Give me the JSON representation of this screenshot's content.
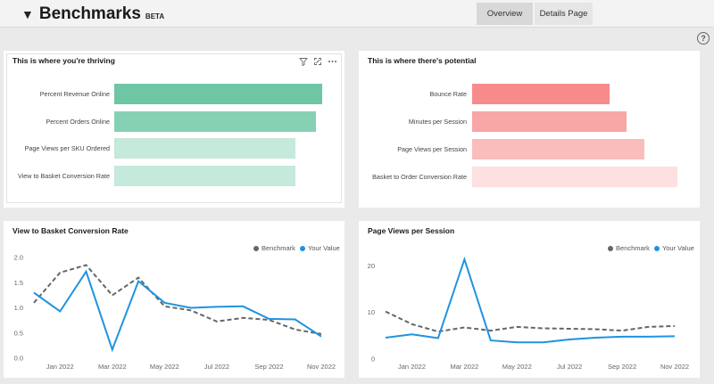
{
  "header": {
    "caret": "▼",
    "title": "Benchmarks",
    "badge": "BETA",
    "tabs": [
      {
        "label": "Overview",
        "active": true
      },
      {
        "label": "Details Page",
        "active": false
      }
    ],
    "help_glyph": "?"
  },
  "thriving": {
    "title": "This is where you're thriving",
    "icons": [
      "filter-icon",
      "focus-mode-icon",
      "more-options-icon"
    ],
    "chart_data": {
      "type": "bar",
      "orientation": "horizontal",
      "categories": [
        "Percent Revenue Online",
        "Percent Orders Online",
        "Page Views per SKU Ordered",
        "View to Basket Conversion Rate"
      ],
      "values": [
        1.0,
        0.97,
        0.87,
        0.87
      ],
      "colors": [
        "#6fc6a4",
        "#86d1b3",
        "#c5e9da",
        "#c5e9da"
      ]
    }
  },
  "potential": {
    "title": "This is where there's potential",
    "chart_data": {
      "type": "bar",
      "orientation": "horizontal",
      "categories": [
        "Bounce Rate",
        "Minutes per Session",
        "Page Views per Session",
        "Basket to Order Conversion Rate"
      ],
      "values": [
        0.67,
        0.75,
        0.84,
        1.0
      ],
      "colors": [
        "#f78b8b",
        "#f9a6a6",
        "#fbbcbc",
        "#fde0e0"
      ]
    }
  },
  "view_basket": {
    "title": "View to Basket Conversion Rate",
    "legend": [
      {
        "name": "Benchmark",
        "color": "#666666"
      },
      {
        "name": "Your Value",
        "color": "#1f93e0"
      }
    ],
    "chart_data": {
      "type": "line",
      "x": [
        "2021-12",
        "2022-01",
        "2022-02",
        "2022-03",
        "2022-04",
        "2022-05",
        "2022-06",
        "2022-07",
        "2022-08",
        "2022-09",
        "2022-10",
        "2022-11"
      ],
      "x_ticks": [
        "Jan 2022",
        "Mar 2022",
        "May 2022",
        "Jul 2022",
        "Sep 2022",
        "Nov 2022"
      ],
      "y_ticks": [
        "0.0",
        "0.5",
        "1.0",
        "1.5",
        "2.0"
      ],
      "ylim": [
        0,
        2.0
      ],
      "series": [
        {
          "name": "Benchmark",
          "values": [
            1.1,
            1.7,
            1.85,
            1.25,
            1.6,
            1.03,
            0.95,
            0.73,
            0.8,
            0.76,
            0.57,
            0.48
          ],
          "color": "#666666",
          "dashed": true
        },
        {
          "name": "Your Value",
          "values": [
            1.3,
            0.93,
            1.72,
            0.17,
            1.53,
            1.1,
            1.0,
            1.02,
            1.03,
            0.78,
            0.77,
            0.43
          ],
          "color": "#1f93e0",
          "dashed": false
        }
      ]
    }
  },
  "page_views": {
    "title": "Page Views per Session",
    "legend": [
      {
        "name": "Benchmark",
        "color": "#666666"
      },
      {
        "name": "Your Value",
        "color": "#1f93e0"
      }
    ],
    "chart_data": {
      "type": "line",
      "x": [
        "2021-12",
        "2022-01",
        "2022-02",
        "2022-03",
        "2022-04",
        "2022-05",
        "2022-06",
        "2022-07",
        "2022-08",
        "2022-09",
        "2022-10",
        "2022-11"
      ],
      "x_ticks": [
        "Jan 2022",
        "Mar 2022",
        "May 2022",
        "Jul 2022",
        "Sep 2022",
        "Nov 2022"
      ],
      "y_ticks": [
        "0",
        "10",
        "20"
      ],
      "ylim": [
        0,
        22
      ],
      "series": [
        {
          "name": "Benchmark",
          "values": [
            10.2,
            7.5,
            5.9,
            6.8,
            6.1,
            6.9,
            6.6,
            6.5,
            6.4,
            6.1,
            6.9,
            7.1
          ],
          "color": "#666666",
          "dashed": true
        },
        {
          "name": "Your Value",
          "values": [
            4.6,
            5.3,
            4.5,
            21.4,
            4.0,
            3.6,
            3.6,
            4.2,
            4.6,
            4.8,
            4.8,
            4.9
          ],
          "color": "#1f93e0",
          "dashed": false
        }
      ]
    }
  }
}
